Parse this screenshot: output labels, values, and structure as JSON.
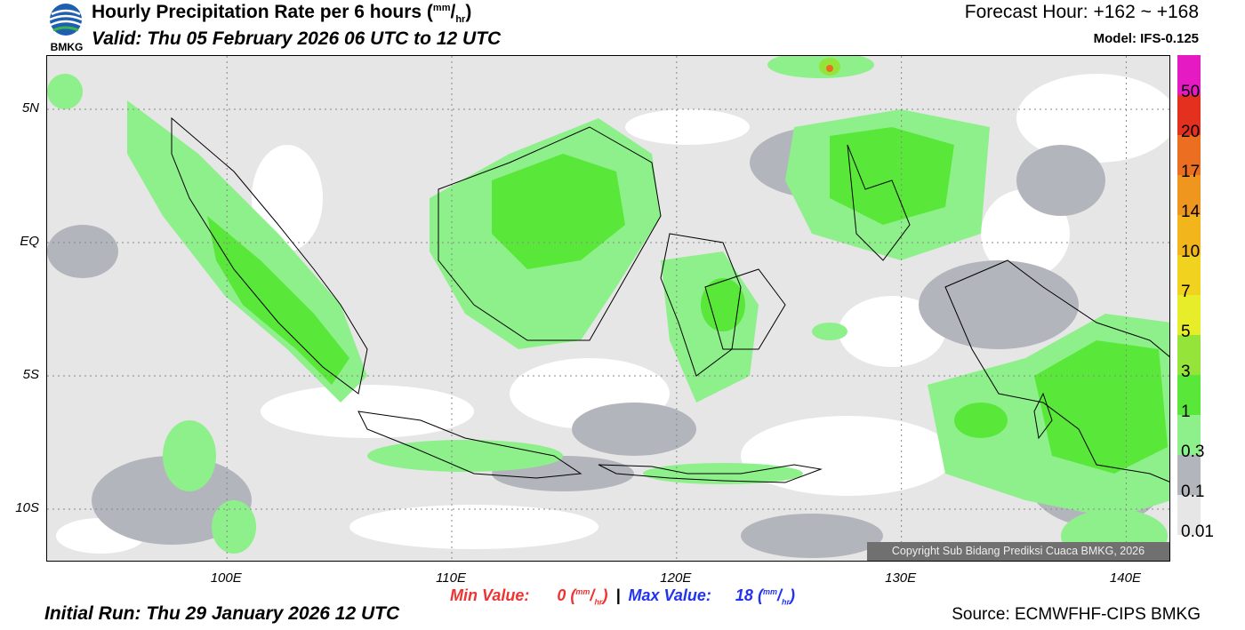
{
  "header": {
    "logo_text": "BMKG",
    "title": "Hourly Precipitation Rate per 6 hours",
    "title_unit_num": "mm",
    "title_unit_den": "hr",
    "valid": "Valid: Thu 05 February 2026 06 UTC to 12 UTC",
    "forecast_hour": "Forecast Hour: +162 ~ +168",
    "model": "Model: IFS-0.125"
  },
  "map": {
    "lat_labels": [
      "5N",
      "EQ",
      "5S",
      "10S"
    ],
    "lon_labels": [
      "100E",
      "110E",
      "120E",
      "130E",
      "140E"
    ],
    "lat_values": [
      5,
      0,
      -5,
      -10
    ],
    "lon_values": [
      100,
      110,
      120,
      130,
      140
    ],
    "lon_range": [
      92,
      142
    ],
    "lat_range": [
      -12,
      7
    ],
    "copyright": "Copyright Sub Bidang Prediksi Cuaca BMKG, 2026"
  },
  "legend": {
    "levels": [
      "0.01",
      "0.1",
      "0.3",
      "1",
      "3",
      "5",
      "7",
      "10",
      "14",
      "17",
      "20",
      "50"
    ],
    "colors": [
      "#e6e6e6",
      "#b3b5bc",
      "#8ef08a",
      "#59e83a",
      "#95e43a",
      "#e8ed2a",
      "#f0d21f",
      "#f2b51c",
      "#ef961e",
      "#ec6f21",
      "#e3301f",
      "#e61ac3"
    ]
  },
  "footer": {
    "min_label": "Min Value:",
    "min_value": "0",
    "max_label": "Max Value:",
    "max_value": "18",
    "unit_num": "mm",
    "unit_den": "hr",
    "separator": "|",
    "initial_run": "Initial Run: Thu 29 January 2026 12 UTC",
    "source": "Source: ECMWFHF-CIPS BMKG"
  }
}
